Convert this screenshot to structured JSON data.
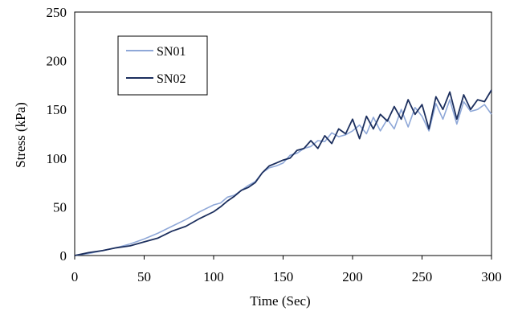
{
  "chart_data": {
    "type": "line",
    "title": "",
    "xlabel": "Time (Sec)",
    "ylabel": "Stress (kPa)",
    "xlim": [
      0,
      300
    ],
    "ylim": [
      0,
      250
    ],
    "xticks": [
      0,
      50,
      100,
      150,
      200,
      250,
      300
    ],
    "yticks": [
      0,
      50,
      100,
      150,
      200,
      250
    ],
    "grid": false,
    "legend_position": "top-left",
    "series": [
      {
        "name": "SN01",
        "color": "#8fa8d8",
        "x": [
          0,
          10,
          20,
          30,
          40,
          50,
          60,
          70,
          80,
          90,
          100,
          105,
          110,
          115,
          120,
          125,
          130,
          135,
          140,
          145,
          150,
          155,
          160,
          165,
          170,
          175,
          180,
          185,
          190,
          195,
          200,
          205,
          210,
          215,
          220,
          225,
          230,
          235,
          240,
          245,
          250,
          255,
          260,
          265,
          270,
          275,
          280,
          285,
          290,
          295,
          300
        ],
        "y": [
          0,
          2,
          5,
          8,
          12,
          17,
          23,
          30,
          37,
          45,
          52,
          54,
          60,
          62,
          67,
          72,
          76,
          85,
          90,
          92,
          95,
          103,
          105,
          110,
          112,
          118,
          117,
          126,
          122,
          124,
          128,
          134,
          125,
          142,
          128,
          140,
          130,
          150,
          132,
          152,
          143,
          128,
          156,
          140,
          160,
          135,
          158,
          148,
          150,
          155,
          145
        ]
      },
      {
        "name": "SN02",
        "color": "#1c2f5e",
        "x": [
          0,
          10,
          20,
          30,
          35,
          40,
          50,
          60,
          70,
          80,
          90,
          100,
          105,
          110,
          115,
          120,
          125,
          130,
          135,
          140,
          145,
          150,
          155,
          160,
          165,
          170,
          175,
          180,
          185,
          190,
          195,
          200,
          205,
          210,
          215,
          220,
          225,
          230,
          235,
          240,
          245,
          250,
          255,
          260,
          265,
          270,
          275,
          280,
          285,
          290,
          295,
          300
        ],
        "y": [
          0,
          3,
          5,
          8,
          9,
          10,
          14,
          18,
          25,
          30,
          38,
          45,
          50,
          56,
          61,
          67,
          70,
          75,
          85,
          92,
          95,
          98,
          100,
          108,
          110,
          118,
          110,
          123,
          115,
          130,
          125,
          140,
          120,
          143,
          130,
          145,
          138,
          153,
          140,
          160,
          145,
          155,
          130,
          163,
          150,
          168,
          140,
          165,
          150,
          160,
          158,
          170
        ]
      }
    ]
  }
}
